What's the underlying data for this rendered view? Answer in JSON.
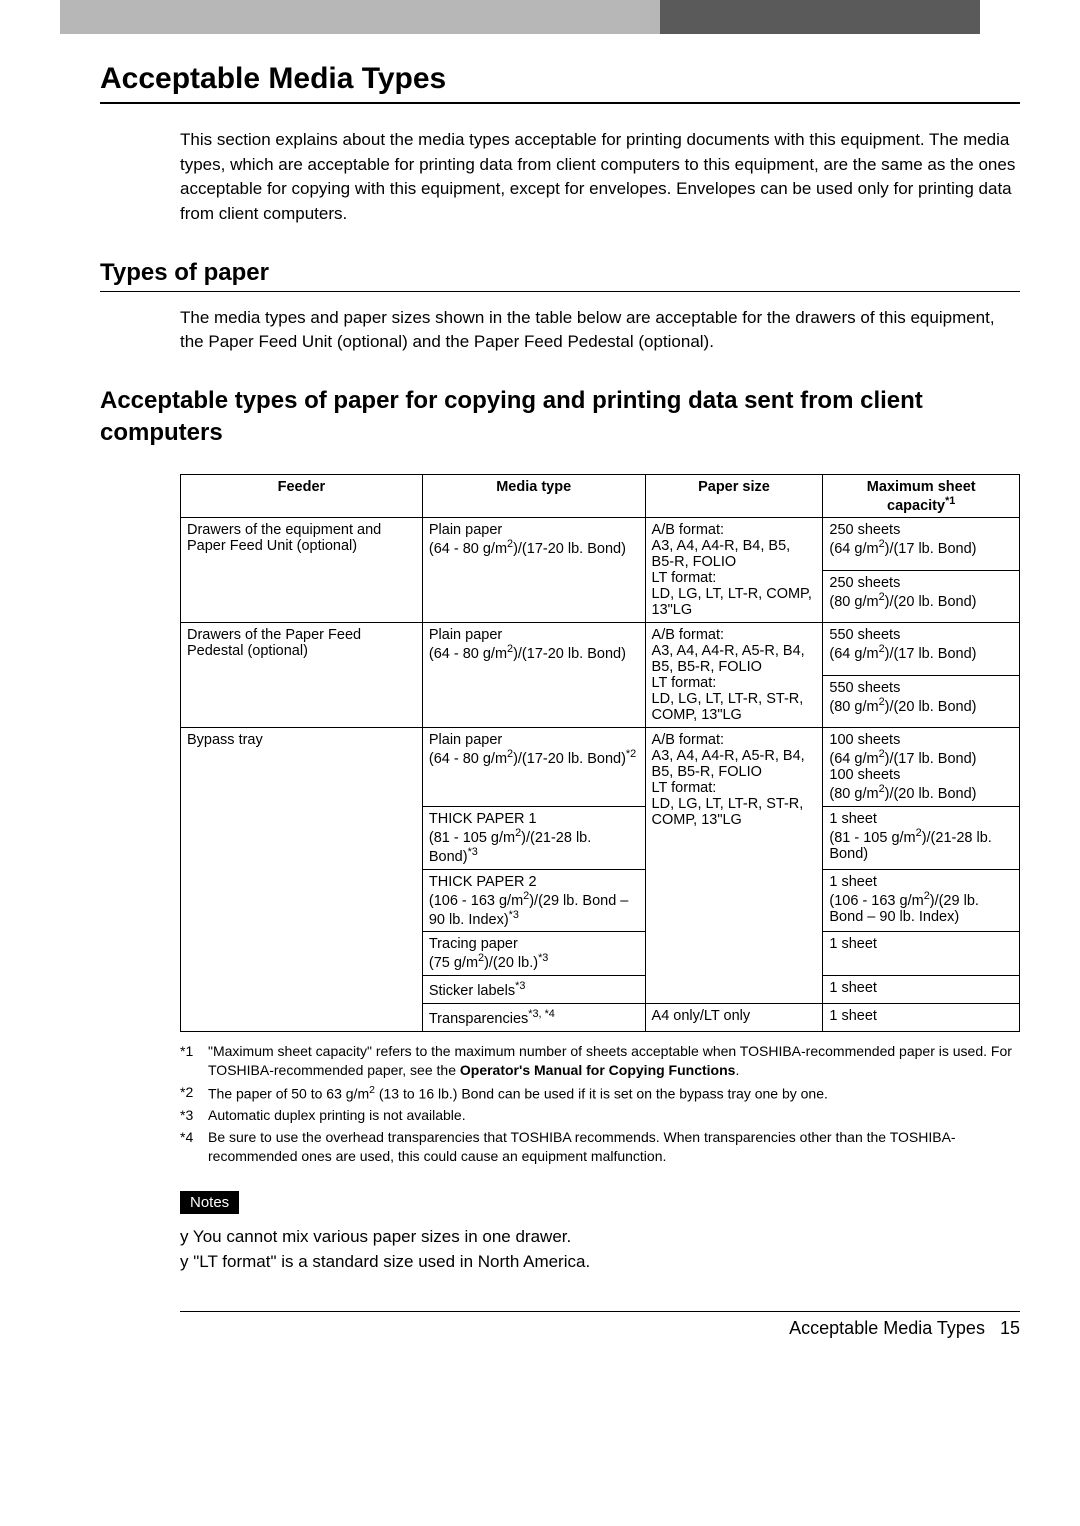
{
  "topbar": {
    "outer_color": "#5a5a5a",
    "inner_color": "#b7b7b7"
  },
  "h1": "Acceptable Media Types",
  "intro": "This section explains about the media types acceptable for printing documents with this equipment. The media types, which are acceptable for printing data from client computers to this equipment, are the same as the ones acceptable for copying with this equipment, except for envelopes. Envelopes can be used only for printing data from client computers.",
  "h2": "Types of paper",
  "h2_text": "The media types and paper sizes shown in the table below are acceptable for the drawers of this equipment, the Paper Feed Unit (optional) and the Paper Feed Pedestal (optional).",
  "h3": "Acceptable types of paper for copying and printing data sent from client computers",
  "table": {
    "headers": {
      "feeder": "Feeder",
      "media": "Media type",
      "size": "Paper size",
      "capacity_line1": "Maximum sheet",
      "capacity_line2_prefix": "capacity",
      "capacity_sup": "*1"
    },
    "rows": {
      "r1": {
        "feeder": "Drawers of the equipment and Paper Feed Unit (optional)",
        "media_l1": "Plain paper",
        "media_l2a": "(64 - 80 g/m",
        "media_l2b": ")/(17-20 lb. Bond)",
        "size": "A/B format:\nA3, A4, A4-R, B4, B5, B5-R, FOLIO\nLT format:\nLD, LG, LT, LT-R, COMP, 13\"LG",
        "cap_a": "250 sheets",
        "cap_b1": "(64 g/m",
        "cap_b2": ")/(17 lb. Bond)",
        "cap_c": "250 sheets",
        "cap_d1": "(80 g/m",
        "cap_d2": ")/(20 lb. Bond)"
      },
      "r2": {
        "feeder": "Drawers of the Paper Feed Pedestal (optional)",
        "media_l1": "Plain paper",
        "media_l2a": "(64 - 80 g/m",
        "media_l2b": ")/(17-20 lb. Bond)",
        "size": "A/B format:\nA3, A4, A4-R, A5-R, B4, B5, B5-R, FOLIO\nLT format:\nLD, LG, LT, LT-R, ST-R, COMP, 13\"LG",
        "cap_a": "550 sheets",
        "cap_b1": "(64 g/m",
        "cap_b2": ")/(17 lb. Bond)",
        "cap_c": "550 sheets",
        "cap_d1": "(80 g/m",
        "cap_d2": ")/(20 lb. Bond)"
      },
      "r3": {
        "feeder": "Bypass tray",
        "m1_l1": "Plain paper",
        "m1_l2a": "(64 - 80 g/m",
        "m1_l2b": ")/(17-20 lb. Bond)",
        "m1_sup": "*2",
        "m2_l1": "THICK PAPER 1",
        "m2_l2a": "(81 - 105 g/m",
        "m2_l2b": ")/(21-28 lb. Bond)",
        "m2_sup": "*3",
        "m3_l1": "THICK PAPER 2",
        "m3_l2a": "(106 - 163 g/m",
        "m3_l2b": ")/(29 lb. Bond – 90 lb. Index)",
        "m3_sup": "*3",
        "m4_l1": "Tracing paper",
        "m4_l2a": "(75 g/m",
        "m4_l2b": ")/(20 lb.)",
        "m4_sup": "*3",
        "m5": "Sticker labels",
        "m5_sup": "*3",
        "m6": "Transparencies",
        "m6_sup": "*3, *4",
        "size": "A/B format:\nA3, A4, A4-R, A5-R, B4, B5, B5-R, FOLIO\nLT format:\nLD, LG, LT, LT-R, ST-R, COMP, 13\"LG",
        "size_transp": "A4 only/LT only",
        "c1a": "100 sheets",
        "c1b1": "(64 g/m",
        "c1b2": ")/(17 lb. Bond)",
        "c1c": "100 sheets",
        "c1d1": "(80 g/m",
        "c1d2": ")/(20 lb. Bond)",
        "c2a": "1 sheet",
        "c2b1": "(81 - 105 g/m",
        "c2b2": ")/(21-28 lb. Bond)",
        "c3a": "1 sheet",
        "c3b1": "(106 - 163 g/m",
        "c3b2": ")/(29 lb. Bond – 90 lb. Index)",
        "c4": "1 sheet",
        "c5": "1 sheet",
        "c6": "1 sheet"
      }
    }
  },
  "footnotes": {
    "f1_mark": "*1",
    "f1a": "\"Maximum sheet capacity\" refers to the maximum number of sheets acceptable when TOSHIBA-recommended paper is used. For TOSHIBA-recommended paper, see the ",
    "f1b": "Operator's Manual for Copying Functions",
    "f1c": ".",
    "f2_mark": "*2",
    "f2a": "The paper of 50 to 63 g/m",
    "f2b": " (13 to 16 lb.) Bond can be used if it is set on the bypass tray one by one.",
    "f3_mark": "*3",
    "f3": "Automatic duplex printing is not available.",
    "f4_mark": "*4",
    "f4": "Be sure to use the overhead transparencies that TOSHIBA recommends. When transparencies other than the TOSHIBA-recommended ones are used, this could cause an equipment malfunction."
  },
  "notes_label": "Notes",
  "notes": {
    "n1": "You cannot mix various paper sizes in one drawer.",
    "n2": "\"LT format\" is a standard size used in North America."
  },
  "footer": {
    "text": "Acceptable Media Types",
    "page": "15"
  }
}
